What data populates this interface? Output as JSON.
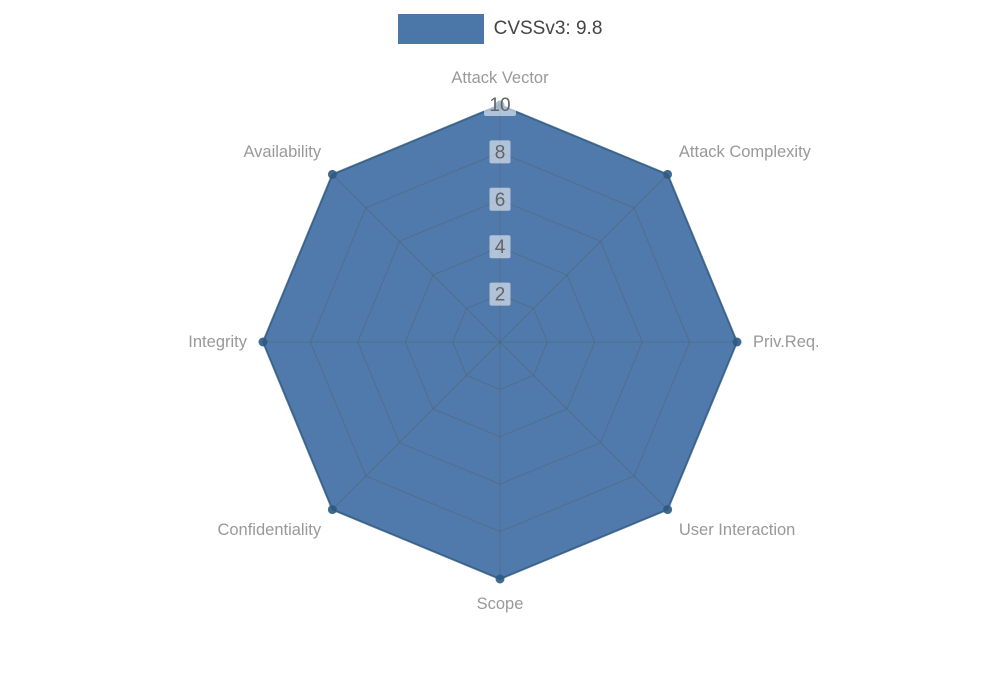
{
  "legend": {
    "label": "CVSSv3: 9.8",
    "swatch_color": "#4a76a8"
  },
  "chart_data": {
    "type": "radar",
    "title": "CVSSv3: 9.8",
    "categories": [
      "Attack Vector",
      "Attack Complexity",
      "Priv.Req.",
      "User Interaction",
      "Scope",
      "Confidentiality",
      "Integrity",
      "Availability"
    ],
    "series": [
      {
        "name": "CVSSv3: 9.8",
        "values": [
          10,
          10,
          10,
          10,
          10,
          10,
          10,
          10
        ]
      }
    ],
    "ticks": [
      2,
      4,
      6,
      8,
      10
    ],
    "rmin": 0,
    "rmax": 10,
    "grid": true,
    "legend_position": "top-center",
    "colors": {
      "fill": "#4a76a8",
      "outline": "#2e5a82",
      "dot": "#2e5a82",
      "grid_line": "#555f66",
      "tick_text": "#606468",
      "tick_box": "#ffffff",
      "axis_label": "#999999",
      "legend_text": "#444444",
      "background": "#ffffff"
    }
  }
}
